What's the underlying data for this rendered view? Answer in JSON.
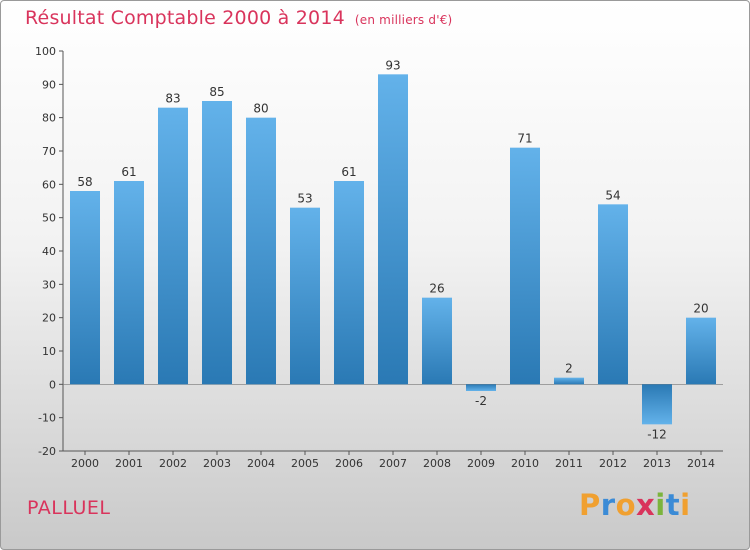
{
  "title": "Résultat Comptable 2000 à 2014",
  "subtitle": "(en milliers d'€)",
  "commune": "PALLUEL",
  "brand": "Proxiti",
  "colors": {
    "title": "#d9345c",
    "bar_light": "#63b2ea",
    "bar_dark": "#2a79b4",
    "brand": [
      "#f0a030",
      "#3b8bd6",
      "#f0a030",
      "#d9345c",
      "#7bb43c",
      "#3b8bd6",
      "#f0a030"
    ]
  },
  "chart_data": {
    "type": "bar",
    "title": "Résultat Comptable 2000 à 2014",
    "subtitle": "(en milliers d'€)",
    "xlabel": "",
    "ylabel": "",
    "categories": [
      "2000",
      "2001",
      "2002",
      "2003",
      "2004",
      "2005",
      "2006",
      "2007",
      "2008",
      "2009",
      "2010",
      "2011",
      "2012",
      "2013",
      "2014"
    ],
    "values": [
      58,
      61,
      83,
      85,
      80,
      53,
      61,
      93,
      26,
      -2,
      71,
      2,
      54,
      -12,
      20
    ],
    "ylim": [
      -20,
      100
    ],
    "yticks": [
      -20,
      -10,
      0,
      10,
      20,
      30,
      40,
      50,
      60,
      70,
      80,
      90,
      100
    ],
    "grid": false,
    "legend": "none"
  }
}
